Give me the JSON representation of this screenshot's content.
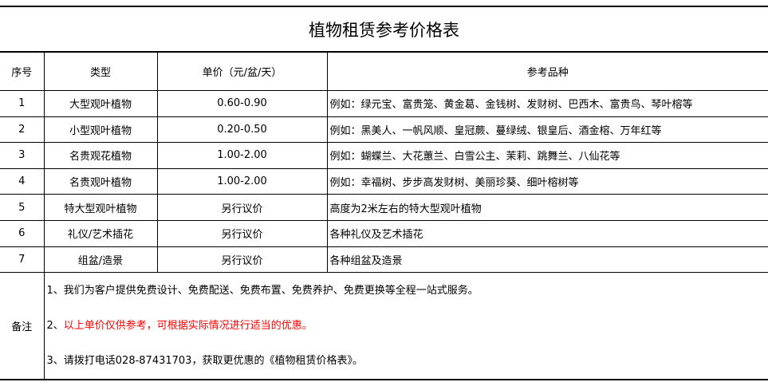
{
  "title": "植物租赁参考价格表",
  "headers": [
    "序号",
    "类型",
    "单价（元/盆/天）",
    "参考品种"
  ],
  "rows": [
    {
      "no": "1",
      "type": "大型观叶植物",
      "price": "0.60-0.90",
      "examples": "例如：绿元宝、富贵笼、黄金葛、金钱树、发财树、巴西木、富贵鸟、琴叶榕等"
    },
    {
      "no": "2",
      "type": "小型观叶植物",
      "price": "0.20-0.50",
      "examples": "例如：黑美人、一帆风顺、皇冠蕨、蔓绿绒、银皇后、酒金榕、万年红等"
    },
    {
      "no": "3",
      "type": "名贵观花植物",
      "price": "1.00-2.00",
      "examples": "例如：蝴蝶兰、大花蕙兰、白雪公主、茉莉、跳舞兰、八仙花等"
    },
    {
      "no": "4",
      "type": "名贵观叶植物",
      "price": "1.00-2.00",
      "examples": "例如：幸福树、步步高发财树、美丽珍葵、细叶榕树等"
    },
    {
      "no": "5",
      "type": "特大型观叶植物",
      "price": "另行议价",
      "examples": "高度为2米左右的特大型观叶植物"
    },
    {
      "no": "6",
      "type": "礼仪/艺术插花",
      "price": "另行议价",
      "examples": "各种礼仪及艺术插花"
    },
    {
      "no": "7",
      "type": "组盆/造景",
      "price": "另行议价",
      "examples": "各种组盆及造景"
    }
  ],
  "notes": {
    "label": "备注",
    "line1": "1、我们为客户提供免费设计、免费配送、免费布置、免费养护、免费更换等全程一站式服务。",
    "line2_prefix": "2、",
    "line2_text": "以上单价仅供参考，可根据实际情况进行适当的优惠。",
    "line3": "3、请拨打电话028-87431703，获取更优惠的《植物租赁价格表》。"
  },
  "colors": {
    "highlight": "#ff0000"
  }
}
